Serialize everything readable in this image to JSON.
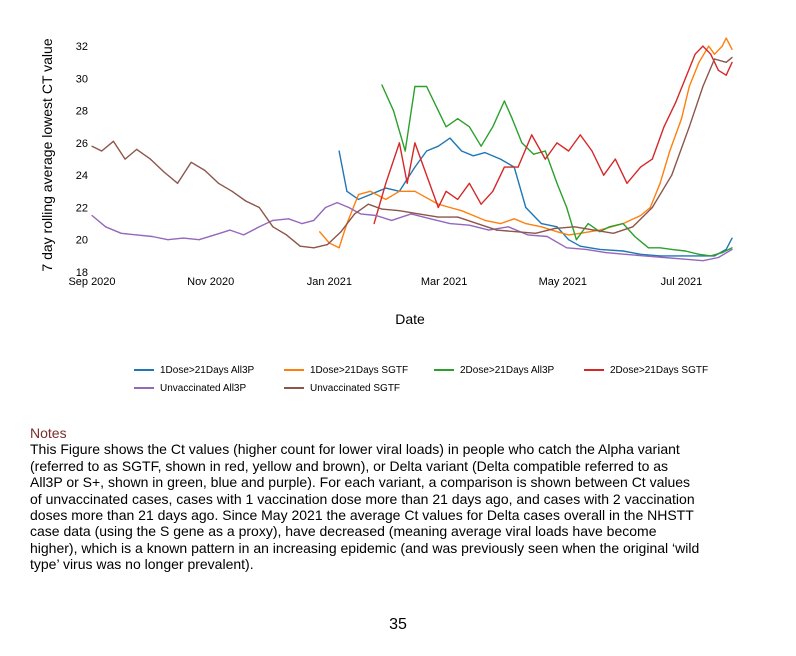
{
  "chart_data": {
    "type": "line",
    "xlabel": "Date",
    "ylabel": "7 day rolling average lowest CT value",
    "x_ticks": [
      "Sep 2020",
      "Nov 2020",
      "Jan 2021",
      "Mar 2021",
      "May 2021",
      "Jul 2021"
    ],
    "x_tick_dates": [
      "2020-09-01",
      "2020-11-01",
      "2021-01-01",
      "2021-03-01",
      "2021-05-01",
      "2021-07-01"
    ],
    "xlim": [
      "2020-09-01",
      "2021-07-28"
    ],
    "y_ticks": [
      18,
      20,
      22,
      24,
      26,
      28,
      30,
      32
    ],
    "ylim": [
      18,
      33
    ],
    "grid": false,
    "legend_position": "bottom",
    "series": [
      {
        "name": "1Dose>21Days All3P",
        "color": "#1f77b4",
        "x": [
          "2021-01-06",
          "2021-01-10",
          "2021-01-16",
          "2021-01-22",
          "2021-01-30",
          "2021-02-06",
          "2021-02-14",
          "2021-02-20",
          "2021-02-26",
          "2021-03-04",
          "2021-03-10",
          "2021-03-16",
          "2021-03-22",
          "2021-03-30",
          "2021-04-06",
          "2021-04-12",
          "2021-04-20",
          "2021-04-28",
          "2021-05-04",
          "2021-05-10",
          "2021-05-20",
          "2021-06-01",
          "2021-06-10",
          "2021-06-20",
          "2021-07-01",
          "2021-07-10",
          "2021-07-18",
          "2021-07-24",
          "2021-07-27"
        ],
        "values": [
          25.5,
          23.0,
          22.5,
          22.8,
          23.2,
          23.0,
          24.5,
          25.5,
          25.8,
          26.3,
          25.5,
          25.2,
          25.4,
          25.0,
          24.5,
          22.0,
          21.0,
          20.8,
          20.0,
          19.6,
          19.4,
          19.3,
          19.1,
          19.0,
          19.0,
          19.0,
          19.0,
          19.4,
          20.1
        ]
      },
      {
        "name": "1Dose>21Days SGTF",
        "color": "#ff7f0e",
        "x": [
          "2020-12-27",
          "2021-01-01",
          "2021-01-06",
          "2021-01-10",
          "2021-01-16",
          "2021-01-22",
          "2021-01-30",
          "2021-02-06",
          "2021-02-14",
          "2021-02-20",
          "2021-02-26",
          "2021-03-04",
          "2021-03-10",
          "2021-03-16",
          "2021-03-22",
          "2021-03-30",
          "2021-04-06",
          "2021-04-12",
          "2021-04-20",
          "2021-04-28",
          "2021-05-04",
          "2021-05-10",
          "2021-05-20",
          "2021-06-01",
          "2021-06-10",
          "2021-06-15",
          "2021-06-20",
          "2021-06-25",
          "2021-07-01",
          "2021-07-05",
          "2021-07-10",
          "2021-07-15",
          "2021-07-18",
          "2021-07-22",
          "2021-07-24",
          "2021-07-27"
        ],
        "values": [
          20.5,
          19.8,
          19.5,
          21.0,
          22.8,
          23.0,
          22.5,
          23.0,
          23.0,
          22.6,
          22.2,
          22.0,
          21.8,
          21.5,
          21.2,
          21.0,
          21.3,
          21.0,
          20.8,
          20.5,
          20.3,
          20.4,
          20.6,
          21.0,
          21.5,
          22.0,
          23.5,
          25.5,
          27.5,
          29.5,
          31.0,
          32.0,
          31.5,
          32.0,
          32.5,
          31.8
        ]
      },
      {
        "name": "2Dose>21Days All3P",
        "color": "#2ca02c",
        "x": [
          "2021-01-28",
          "2021-02-03",
          "2021-02-09",
          "2021-02-14",
          "2021-02-20",
          "2021-02-26",
          "2021-03-02",
          "2021-03-08",
          "2021-03-14",
          "2021-03-20",
          "2021-03-26",
          "2021-04-01",
          "2021-04-05",
          "2021-04-10",
          "2021-04-16",
          "2021-04-22",
          "2021-04-28",
          "2021-05-03",
          "2021-05-08",
          "2021-05-14",
          "2021-05-20",
          "2021-05-25",
          "2021-06-01",
          "2021-06-07",
          "2021-06-14",
          "2021-06-20",
          "2021-06-26",
          "2021-07-03",
          "2021-07-10",
          "2021-07-16",
          "2021-07-22",
          "2021-07-27"
        ],
        "values": [
          29.6,
          28.0,
          25.5,
          29.5,
          29.5,
          28.0,
          27.0,
          27.5,
          27.0,
          25.8,
          27.0,
          28.6,
          27.5,
          26.0,
          25.3,
          25.5,
          23.5,
          22.0,
          20.0,
          21.0,
          20.5,
          20.8,
          21.0,
          20.2,
          19.5,
          19.5,
          19.4,
          19.3,
          19.1,
          19.0,
          19.2,
          19.5
        ]
      },
      {
        "name": "2Dose>21Days SGTF",
        "color": "#d62728",
        "x": [
          "2021-01-24",
          "2021-01-30",
          "2021-02-06",
          "2021-02-10",
          "2021-02-14",
          "2021-02-20",
          "2021-02-26",
          "2021-03-02",
          "2021-03-08",
          "2021-03-14",
          "2021-03-20",
          "2021-03-26",
          "2021-04-01",
          "2021-04-08",
          "2021-04-15",
          "2021-04-22",
          "2021-04-28",
          "2021-05-04",
          "2021-05-10",
          "2021-05-16",
          "2021-05-22",
          "2021-05-28",
          "2021-06-03",
          "2021-06-10",
          "2021-06-16",
          "2021-06-22",
          "2021-06-28",
          "2021-07-03",
          "2021-07-08",
          "2021-07-12",
          "2021-07-16",
          "2021-07-20",
          "2021-07-24",
          "2021-07-27"
        ],
        "values": [
          21.0,
          23.5,
          26.0,
          23.5,
          26.0,
          24.0,
          22.0,
          23.0,
          22.5,
          23.5,
          22.2,
          23.0,
          24.5,
          24.5,
          26.5,
          25.0,
          26.0,
          25.5,
          26.5,
          25.5,
          24.0,
          25.0,
          23.5,
          24.5,
          25.0,
          27.0,
          28.5,
          30.0,
          31.5,
          32.0,
          31.5,
          30.5,
          30.2,
          31.0
        ]
      },
      {
        "name": "Unvaccinated All3P",
        "color": "#9467bd",
        "x": [
          "2020-09-01",
          "2020-09-08",
          "2020-09-16",
          "2020-09-24",
          "2020-10-02",
          "2020-10-10",
          "2020-10-18",
          "2020-10-26",
          "2020-11-03",
          "2020-11-11",
          "2020-11-18",
          "2020-11-26",
          "2020-12-03",
          "2020-12-11",
          "2020-12-18",
          "2020-12-24",
          "2020-12-30",
          "2021-01-05",
          "2021-01-11",
          "2021-01-17",
          "2021-01-25",
          "2021-02-02",
          "2021-02-12",
          "2021-02-22",
          "2021-03-04",
          "2021-03-14",
          "2021-03-24",
          "2021-04-03",
          "2021-04-13",
          "2021-04-23",
          "2021-05-03",
          "2021-05-13",
          "2021-05-23",
          "2021-06-02",
          "2021-06-12",
          "2021-06-22",
          "2021-07-02",
          "2021-07-12",
          "2021-07-20",
          "2021-07-27"
        ],
        "values": [
          21.5,
          20.8,
          20.4,
          20.3,
          20.2,
          20.0,
          20.1,
          20.0,
          20.3,
          20.6,
          20.3,
          20.8,
          21.2,
          21.3,
          21.0,
          21.2,
          22.0,
          22.3,
          22.0,
          21.6,
          21.5,
          21.2,
          21.6,
          21.3,
          21.0,
          20.9,
          20.6,
          20.8,
          20.3,
          20.2,
          19.5,
          19.4,
          19.2,
          19.1,
          19.0,
          18.9,
          18.8,
          18.7,
          18.9,
          19.4
        ]
      },
      {
        "name": "Unvaccinated SGTF",
        "color": "#8c564b",
        "x": [
          "2020-09-01",
          "2020-09-06",
          "2020-09-12",
          "2020-09-18",
          "2020-09-24",
          "2020-10-01",
          "2020-10-08",
          "2020-10-15",
          "2020-10-22",
          "2020-10-29",
          "2020-11-05",
          "2020-11-12",
          "2020-11-19",
          "2020-11-26",
          "2020-12-03",
          "2020-12-10",
          "2020-12-17",
          "2020-12-24",
          "2020-12-31",
          "2021-01-07",
          "2021-01-14",
          "2021-01-21",
          "2021-01-28",
          "2021-02-06",
          "2021-02-16",
          "2021-02-26",
          "2021-03-08",
          "2021-03-18",
          "2021-03-28",
          "2021-04-07",
          "2021-04-17",
          "2021-04-27",
          "2021-05-07",
          "2021-05-17",
          "2021-05-27",
          "2021-06-06",
          "2021-06-16",
          "2021-06-26",
          "2021-07-05",
          "2021-07-12",
          "2021-07-18",
          "2021-07-24",
          "2021-07-27"
        ],
        "values": [
          25.8,
          25.5,
          26.1,
          25.0,
          25.6,
          25.0,
          24.2,
          23.5,
          24.8,
          24.3,
          23.5,
          23.0,
          22.4,
          22.0,
          20.8,
          20.3,
          19.6,
          19.5,
          19.7,
          20.5,
          21.6,
          22.2,
          21.9,
          21.8,
          21.6,
          21.4,
          21.4,
          21.0,
          20.6,
          20.5,
          20.4,
          20.7,
          20.8,
          20.6,
          20.4,
          20.8,
          22.0,
          24.0,
          27.0,
          29.5,
          31.2,
          31.0,
          31.3
        ]
      }
    ]
  },
  "notes": {
    "heading": "Notes",
    "lines": [
      "This Figure shows the Ct values (higher count for lower viral loads) in people who catch the Alpha variant",
      "(referred to as SGTF, shown in red, yellow and brown), or Delta variant (Delta compatible referred to as",
      "All3P or S+, shown in green, blue and purple). For each variant, a comparison is shown between Ct values",
      "of unvaccinated cases, cases with 1 vaccination dose more than 21 days ago, and cases with 2 vaccination",
      "doses more than 21 days ago. Since May 2021 the average Ct values for Delta cases overall in the NHSTT",
      "case data (using the S gene as a proxy), have decreased (meaning average viral loads have become",
      "higher), which is a known pattern in an increasing epidemic (and was previously seen when the original ‘wild",
      "type’ virus was no longer prevalent)."
    ]
  },
  "page_number": "35"
}
